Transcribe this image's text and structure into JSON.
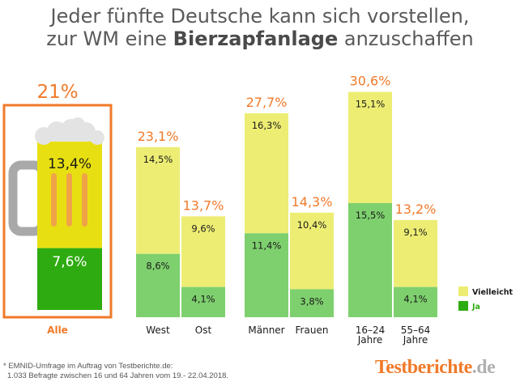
{
  "header": {
    "title_line1": "Jeder fünfte Deutsche kann sich vorstellen,",
    "title_line2_prefix": "zur WM eine ",
    "title_line2_bold": "Bierzapfanlage",
    "title_line2_suffix": " anzuschaffen"
  },
  "chart_data": {
    "type": "bar",
    "stacked": true,
    "unit": "%",
    "series": [
      {
        "name": "Ja",
        "color": "#7ed06e"
      },
      {
        "name": "Vielleicht",
        "color": "#eded74"
      }
    ],
    "highlight": {
      "label": "Alle",
      "total": 21,
      "total_label": "21%",
      "ja": 7.6,
      "ja_label": "7,6%",
      "vielleicht": 13.4,
      "vielleicht_label": "13,4%",
      "colors": {
        "ja": "#2eab10",
        "vielleicht": "#e8df12",
        "frame": "#f07a2a",
        "foam": "#e3e3e3",
        "handle": "#a9a9a9",
        "stripes": "#f0a347"
      }
    },
    "groups": [
      {
        "label": "West",
        "total": 23.1,
        "total_label": "23,1%",
        "ja": 8.6,
        "ja_label": "8,6%",
        "vielleicht": 14.5,
        "vielleicht_label": "14,5%"
      },
      {
        "label": "Ost",
        "total": 13.7,
        "total_label": "13,7%",
        "ja": 4.1,
        "ja_label": "4,1%",
        "vielleicht": 9.6,
        "vielleicht_label": "9,6%"
      },
      {
        "label": "Männer",
        "total": 27.7,
        "total_label": "27,7%",
        "ja": 11.4,
        "ja_label": "11,4%",
        "vielleicht": 16.3,
        "vielleicht_label": "16,3%"
      },
      {
        "label": "Frauen",
        "total": 14.3,
        "total_label": "14,3%",
        "ja": 3.8,
        "ja_label": "3,8%",
        "vielleicht": 10.4,
        "vielleicht_label": "10,4%"
      },
      {
        "label": "16–24 Jahre",
        "total": 30.6,
        "total_label": "30,6%",
        "ja": 15.5,
        "ja_label": "15,5%",
        "vielleicht": 15.1,
        "vielleicht_label": "15,1%"
      },
      {
        "label": "55–64 Jahre",
        "total": 13.2,
        "total_label": "13,2%",
        "ja": 4.1,
        "ja_label": "4,1%",
        "vielleicht": 9.1,
        "vielleicht_label": "9,1%"
      }
    ],
    "legend": [
      {
        "label": "Vielleicht",
        "color": "#eded74"
      },
      {
        "label": "Ja",
        "color": "#2eab10"
      }
    ],
    "colors": {
      "total_label": "#f07a2a",
      "vielleicht_text": "#1a1a1a",
      "ja_text": "#2eab10"
    }
  },
  "footnote": {
    "line1": "* EMNID-Umfrage im Auftrag von Testberichte.de:",
    "line2": "1.033 Befragte zwischen 16 und 64 Jahren vom 19.- 22.04.2018."
  },
  "brand": {
    "name": "Testberichte",
    "tld": ".de"
  }
}
